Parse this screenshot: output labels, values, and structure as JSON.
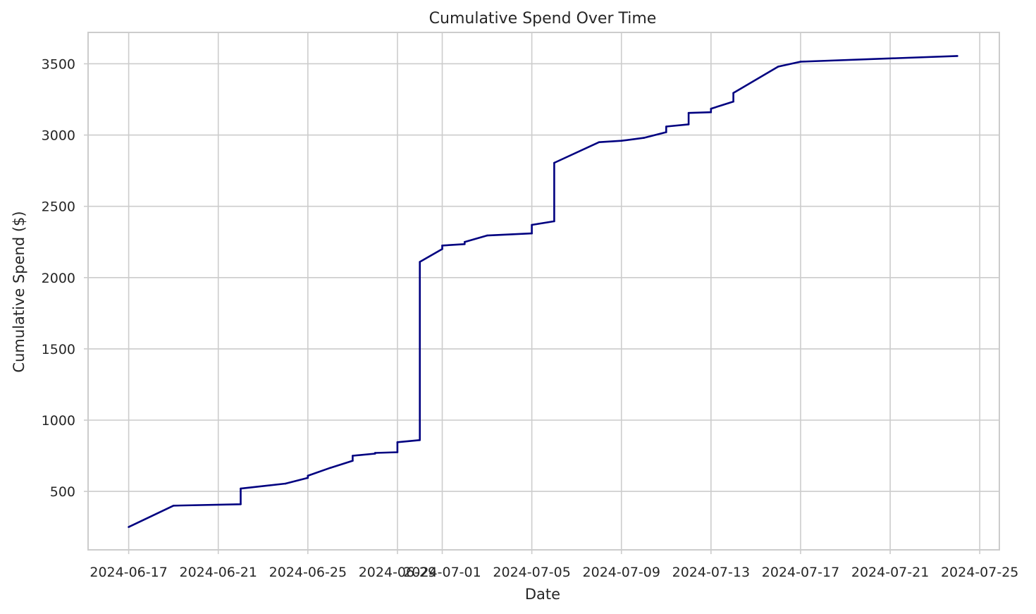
{
  "chart_data": {
    "type": "line",
    "title": "Cumulative Spend Over Time",
    "xlabel": "Date",
    "ylabel": "Cumulative Spend ($)",
    "grid": true,
    "line_color": "#000080",
    "xlim": [
      "2024-06-15T04:30",
      "2024-07-25T21:00"
    ],
    "ylim": [
      90,
      3720
    ],
    "x_ticks": [
      "2024-06-17",
      "2024-06-21",
      "2024-06-25",
      "2024-06-29",
      "2024-07-01",
      "2024-07-05",
      "2024-07-09",
      "2024-07-13",
      "2024-07-17",
      "2024-07-21",
      "2024-07-25"
    ],
    "x_tick_labels": [
      "2024-06-17",
      "2024-06-21",
      "2024-06-25",
      "2024-06-29",
      "2024-07-01",
      "2024-07-05",
      "2024-07-09",
      "2024-07-13",
      "2024-07-17",
      "2024-07-21",
      "2024-07-25"
    ],
    "y_ticks": [
      500,
      1000,
      1500,
      2000,
      2500,
      3000,
      3500
    ],
    "y_tick_labels": [
      "500",
      "1000",
      "1500",
      "2000",
      "2500",
      "3000",
      "3500"
    ],
    "series": [
      {
        "x": [
          "2024-06-17",
          "2024-06-19",
          "2024-06-22",
          "2024-06-22",
          "2024-06-24",
          "2024-06-25",
          "2024-06-25",
          "2024-06-26",
          "2024-06-27",
          "2024-06-27",
          "2024-06-28",
          "2024-06-28",
          "2024-06-29",
          "2024-06-29",
          "2024-06-30",
          "2024-06-30",
          "2024-07-01",
          "2024-07-01",
          "2024-07-02",
          "2024-07-02",
          "2024-07-03",
          "2024-07-05",
          "2024-07-05",
          "2024-07-06",
          "2024-07-06",
          "2024-07-08",
          "2024-07-09",
          "2024-07-10",
          "2024-07-11",
          "2024-07-11",
          "2024-07-12",
          "2024-07-12",
          "2024-07-13",
          "2024-07-13",
          "2024-07-14",
          "2024-07-14",
          "2024-07-16",
          "2024-07-17",
          "2024-07-24"
        ],
        "y": [
          250,
          400,
          410,
          520,
          555,
          595,
          610,
          665,
          715,
          750,
          765,
          770,
          775,
          845,
          860,
          2110,
          2200,
          2225,
          2235,
          2250,
          2295,
          2310,
          2370,
          2395,
          2805,
          2950,
          2960,
          2980,
          3020,
          3060,
          3075,
          3155,
          3160,
          3185,
          3235,
          3295,
          3480,
          3515,
          3555
        ]
      }
    ]
  }
}
